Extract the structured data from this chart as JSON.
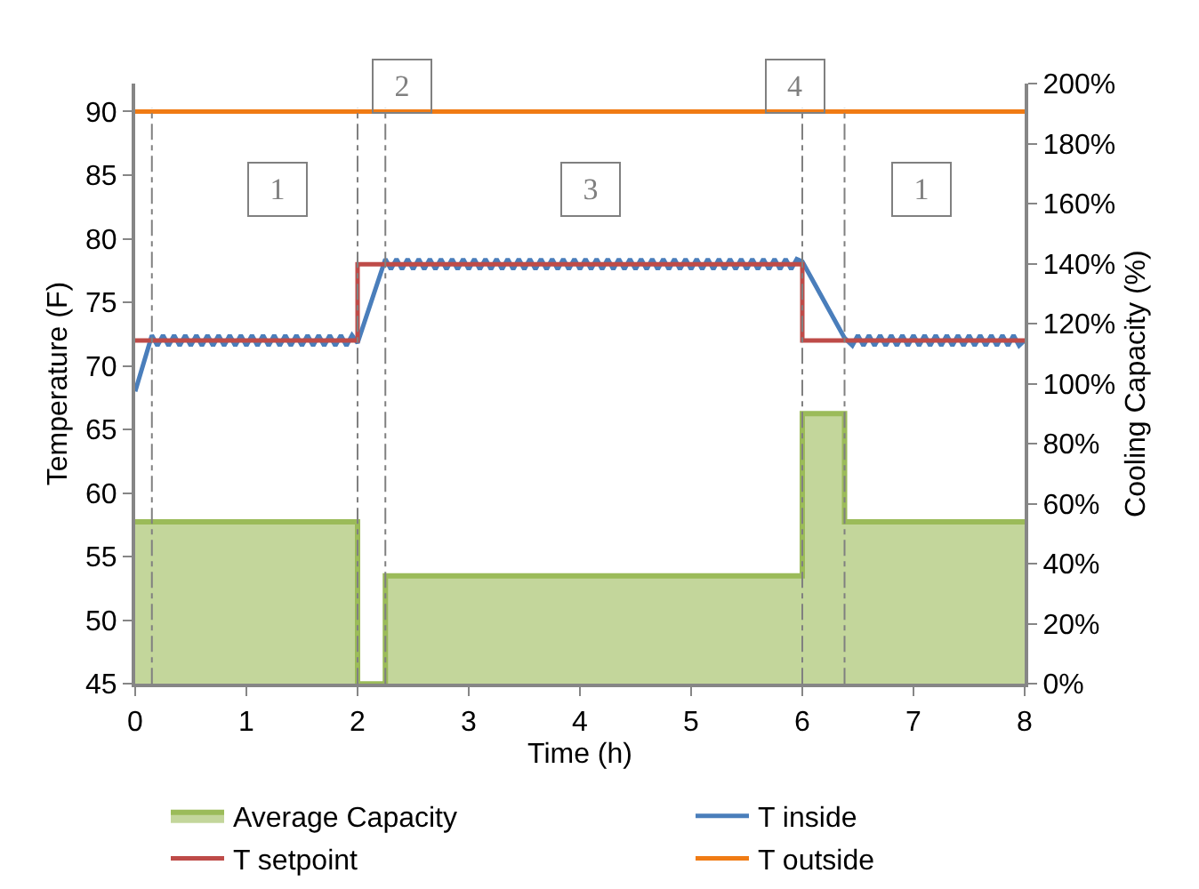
{
  "chart_data": {
    "type": "line",
    "xlabel": "Time (h)",
    "ylabel": "Temperature (F)",
    "y2label": "Cooling Capacity (%)",
    "xlim": [
      0,
      8
    ],
    "xticks": [
      0,
      1,
      2,
      3,
      4,
      5,
      6,
      7,
      8
    ],
    "ylim": [
      45,
      92.2
    ],
    "yticks": [
      45,
      50,
      55,
      60,
      65,
      70,
      75,
      80,
      85,
      90
    ],
    "y2lim": [
      0,
      200
    ],
    "y2ticks": [
      {
        "value": 0,
        "label": "0%"
      },
      {
        "value": 20,
        "label": "20%"
      },
      {
        "value": 40,
        "label": "40%"
      },
      {
        "value": 60,
        "label": "60%"
      },
      {
        "value": 80,
        "label": "80%"
      },
      {
        "value": 100,
        "label": "100%"
      },
      {
        "value": 120,
        "label": "120%"
      },
      {
        "value": 140,
        "label": "140%"
      },
      {
        "value": 160,
        "label": "160%"
      },
      {
        "value": 180,
        "label": "180%"
      },
      {
        "value": 200,
        "label": "200%"
      }
    ],
    "legend": "bottom",
    "marker": "none",
    "line_style": "solid",
    "series": [
      {
        "name": "Average Capacity",
        "type": "area",
        "axis": "y2",
        "color": "#9bbb59",
        "x": [
          0,
          2,
          2,
          2.25,
          2.25,
          6,
          6,
          6.38,
          6.38,
          8
        ],
        "values": [
          54,
          54,
          0,
          0,
          36,
          36,
          90,
          90,
          54,
          54
        ]
      },
      {
        "name": "T inside",
        "color": "#4a7ebb",
        "x": [
          0,
          0.15,
          0.2,
          0.25,
          0.3,
          0.35,
          0.4,
          0.45,
          0.5,
          0.55,
          0.6,
          0.65,
          0.7,
          0.75,
          0.8,
          0.85,
          0.9,
          0.95,
          1.0,
          1.05,
          1.1,
          1.15,
          1.2,
          1.25,
          1.3,
          1.35,
          1.4,
          1.45,
          1.5,
          1.55,
          1.6,
          1.65,
          1.7,
          1.75,
          1.8,
          1.85,
          1.9,
          1.95,
          2.0,
          2.25,
          2.3,
          2.35,
          2.4,
          2.45,
          2.5,
          2.55,
          2.6,
          2.65,
          2.7,
          2.75,
          2.8,
          2.85,
          2.9,
          2.95,
          3.0,
          3.05,
          3.1,
          3.15,
          3.2,
          3.25,
          3.3,
          3.35,
          3.4,
          3.45,
          3.5,
          3.55,
          3.6,
          3.65,
          3.7,
          3.75,
          3.8,
          3.85,
          3.9,
          3.95,
          4.0,
          4.05,
          4.1,
          4.15,
          4.2,
          4.25,
          4.3,
          4.35,
          4.4,
          4.45,
          4.5,
          4.55,
          4.6,
          4.65,
          4.7,
          4.75,
          4.8,
          4.85,
          4.9,
          4.95,
          5.0,
          5.05,
          5.1,
          5.15,
          5.2,
          5.25,
          5.3,
          5.35,
          5.4,
          5.45,
          5.5,
          5.55,
          5.6,
          5.65,
          5.7,
          5.75,
          5.8,
          5.85,
          5.9,
          5.95,
          6.0,
          6.38,
          6.45,
          6.5,
          6.55,
          6.6,
          6.65,
          6.7,
          6.75,
          6.8,
          6.85,
          6.9,
          6.95,
          7.0,
          7.05,
          7.1,
          7.15,
          7.2,
          7.25,
          7.3,
          7.35,
          7.4,
          7.45,
          7.5,
          7.55,
          7.6,
          7.65,
          7.7,
          7.75,
          7.8,
          7.85,
          7.9,
          7.95,
          8.0
        ],
        "values": [
          68,
          72.4,
          71.6,
          72.4,
          71.6,
          72.4,
          71.6,
          72.4,
          71.6,
          72.4,
          71.6,
          72.4,
          71.6,
          72.4,
          71.6,
          72.4,
          71.6,
          72.4,
          71.6,
          72.4,
          71.6,
          72.4,
          71.6,
          72.4,
          71.6,
          72.4,
          71.6,
          72.4,
          71.6,
          72.4,
          71.6,
          72.4,
          71.6,
          72.4,
          71.6,
          72.4,
          71.6,
          72.4,
          71.8,
          78.4,
          77.6,
          78.4,
          77.6,
          78.4,
          77.6,
          78.4,
          77.6,
          78.4,
          77.6,
          78.4,
          77.6,
          78.4,
          77.6,
          78.4,
          77.6,
          78.4,
          77.6,
          78.4,
          77.6,
          78.4,
          77.6,
          78.4,
          77.6,
          78.4,
          77.6,
          78.4,
          77.6,
          78.4,
          77.6,
          78.4,
          77.6,
          78.4,
          77.6,
          78.4,
          77.6,
          78.4,
          77.6,
          78.4,
          77.6,
          78.4,
          77.6,
          78.4,
          77.6,
          78.4,
          77.6,
          78.4,
          77.6,
          78.4,
          77.6,
          78.4,
          77.6,
          78.4,
          77.6,
          78.4,
          77.6,
          78.4,
          77.6,
          78.4,
          77.6,
          78.4,
          77.6,
          78.4,
          77.6,
          78.4,
          77.6,
          78.4,
          77.6,
          78.4,
          77.6,
          78.4,
          77.6,
          78.4,
          77.6,
          78.4,
          78.2,
          72.2,
          71.6,
          72.4,
          71.6,
          72.4,
          71.6,
          72.4,
          71.6,
          72.4,
          71.6,
          72.4,
          71.6,
          72.4,
          71.6,
          72.4,
          71.6,
          72.4,
          71.6,
          72.4,
          71.6,
          72.4,
          71.6,
          72.4,
          71.6,
          72.4,
          71.6,
          72.4,
          71.6,
          72.4,
          71.6,
          72.4,
          71.6,
          72.0
        ]
      },
      {
        "name": "T setpoint",
        "color": "#be4b48",
        "x": [
          0,
          2,
          2,
          6,
          6,
          8
        ],
        "values": [
          72,
          72,
          78,
          78,
          72,
          72
        ]
      },
      {
        "name": "T outside",
        "color": "#f07b14",
        "x": [
          0,
          8
        ],
        "values": [
          90,
          90
        ]
      }
    ],
    "ref_lines": [
      {
        "axis": "x",
        "value": 0.15,
        "color": "#808080",
        "line_style": "dashed"
      },
      {
        "axis": "x",
        "value": 2.0,
        "color": "#808080",
        "line_style": "dashed"
      },
      {
        "axis": "x",
        "value": 2.25,
        "color": "#808080",
        "line_style": "dashed"
      },
      {
        "axis": "x",
        "value": 6.0,
        "color": "#808080",
        "line_style": "dashed"
      },
      {
        "axis": "x",
        "value": 6.38,
        "color": "#808080",
        "line_style": "dashed"
      }
    ],
    "annotations": [
      "1",
      "2",
      "3",
      "4",
      "1"
    ]
  }
}
